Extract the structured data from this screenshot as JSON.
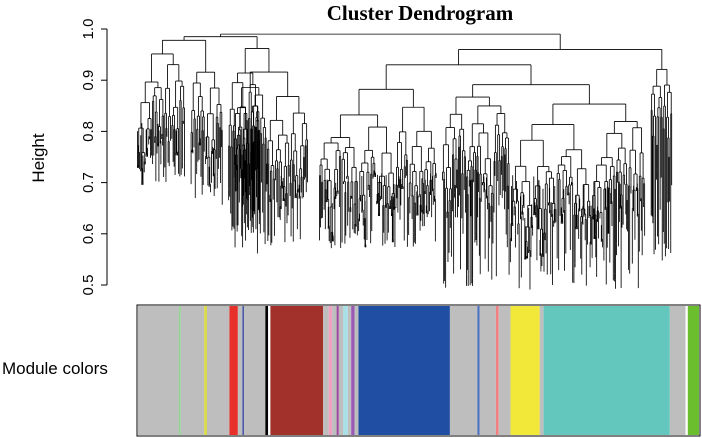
{
  "chart_data": {
    "type": "dendrogram",
    "title": "Cluster Dendrogram",
    "ylabel": "Height",
    "xlabel": "",
    "ylim": [
      0.5,
      1.0
    ],
    "yticks": [
      "0.5",
      "0.6",
      "0.7",
      "0.8",
      "0.9",
      "1.0"
    ],
    "grid": false,
    "clusters": [
      {
        "start": 0.0,
        "end": 0.09,
        "merge": 0.975,
        "leaf_min": 0.7,
        "leaf_max": 0.93
      },
      {
        "start": 0.1,
        "end": 0.16,
        "merge": 0.97,
        "leaf_min": 0.65,
        "leaf_max": 0.93
      },
      {
        "start": 0.17,
        "end": 0.23,
        "merge": 0.96,
        "leaf_min": 0.6,
        "leaf_max": 0.85
      },
      {
        "start": 0.18,
        "end": 0.32,
        "merge": 0.955,
        "leaf_min": 0.55,
        "leaf_max": 0.85
      },
      {
        "start": 0.34,
        "end": 0.56,
        "merge": 0.925,
        "leaf_min": 0.57,
        "leaf_max": 0.85
      },
      {
        "start": 0.57,
        "end": 0.95,
        "merge": 0.925,
        "leaf_min": 0.49,
        "leaf_max": 0.9
      },
      {
        "start": 0.96,
        "end": 1.0,
        "merge": 0.955,
        "leaf_min": 0.54,
        "leaf_max": 0.88
      }
    ],
    "color_bar_label": "Module colors",
    "modules": [
      {
        "color": "#bebebe",
        "start": 0.0,
        "end": 0.073
      },
      {
        "color": "#8fd68f",
        "start": 0.073,
        "end": 0.076
      },
      {
        "color": "#bebebe",
        "start": 0.076,
        "end": 0.118
      },
      {
        "color": "#d9d94a",
        "start": 0.118,
        "end": 0.123
      },
      {
        "color": "#bebebe",
        "start": 0.123,
        "end": 0.163
      },
      {
        "color": "#e8302a",
        "start": 0.163,
        "end": 0.178
      },
      {
        "color": "#bebebe",
        "start": 0.178,
        "end": 0.186
      },
      {
        "color": "#4a5aa8",
        "start": 0.186,
        "end": 0.189
      },
      {
        "color": "#bebebe",
        "start": 0.189,
        "end": 0.227
      },
      {
        "color": "#000000",
        "start": 0.227,
        "end": 0.232
      },
      {
        "color": "#ffffff",
        "start": 0.232,
        "end": 0.236
      },
      {
        "color": "#a2302b",
        "start": 0.236,
        "end": 0.33
      },
      {
        "color": "#bebebe",
        "start": 0.33,
        "end": 0.34
      },
      {
        "color": "#f0a0c0",
        "start": 0.34,
        "end": 0.346
      },
      {
        "color": "#bebebe",
        "start": 0.346,
        "end": 0.354
      },
      {
        "color": "#a04aa0",
        "start": 0.354,
        "end": 0.358
      },
      {
        "color": "#bebebe",
        "start": 0.358,
        "end": 0.366
      },
      {
        "color": "#a8e0e8",
        "start": 0.366,
        "end": 0.374
      },
      {
        "color": "#bebebe",
        "start": 0.374,
        "end": 0.38
      },
      {
        "color": "#9b59b6",
        "start": 0.38,
        "end": 0.386
      },
      {
        "color": "#bebebe",
        "start": 0.386,
        "end": 0.393
      },
      {
        "color": "#1f4ea3",
        "start": 0.393,
        "end": 0.556
      },
      {
        "color": "#bebebe",
        "start": 0.556,
        "end": 0.605
      },
      {
        "color": "#4a70c0",
        "start": 0.605,
        "end": 0.609
      },
      {
        "color": "#bebebe",
        "start": 0.609,
        "end": 0.638
      },
      {
        "color": "#f08080",
        "start": 0.638,
        "end": 0.643
      },
      {
        "color": "#bebebe",
        "start": 0.643,
        "end": 0.664
      },
      {
        "color": "#f2e83a",
        "start": 0.664,
        "end": 0.716
      },
      {
        "color": "#bebebe",
        "start": 0.716,
        "end": 0.723
      },
      {
        "color": "#63c7be",
        "start": 0.723,
        "end": 0.948
      },
      {
        "color": "#bebebe",
        "start": 0.948,
        "end": 0.976
      },
      {
        "color": "#ffffff",
        "start": 0.976,
        "end": 0.98
      },
      {
        "color": "#6bbf2f",
        "start": 0.98,
        "end": 1.0
      }
    ]
  }
}
